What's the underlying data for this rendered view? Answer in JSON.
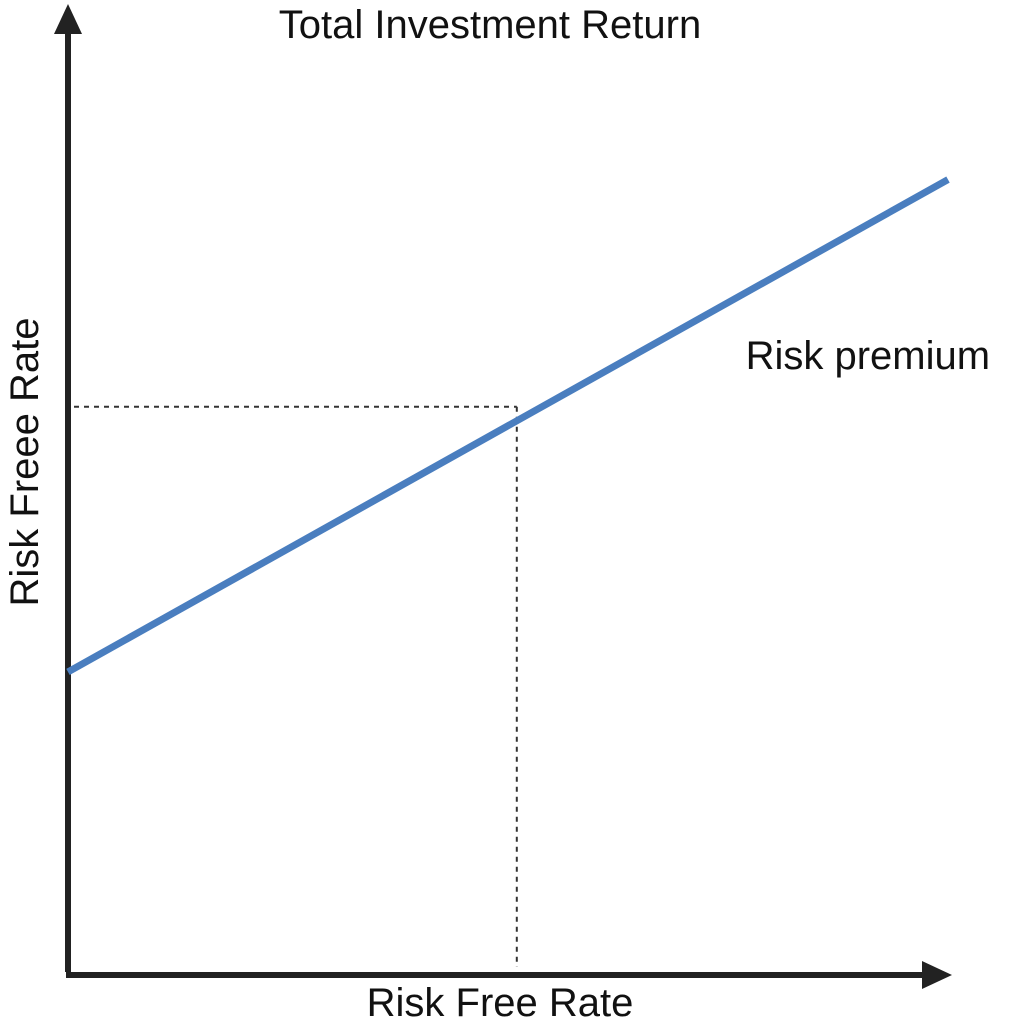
{
  "chart_data": {
    "type": "line",
    "title": "Total Investment Return",
    "xlabel": "Risk Free Rate",
    "ylabel": "Risk Freee Rate",
    "grid": false,
    "legend": "none",
    "xlim": [
      0,
      1
    ],
    "ylim": [
      0,
      1
    ],
    "series": [
      {
        "color": "#4a7ebf",
        "x": [
          0,
          1
        ],
        "y": [
          0.32,
          0.84
        ]
      }
    ],
    "reference_point": {
      "x": 0.51,
      "y": 0.6
    },
    "annotations": [
      {
        "text": "Risk premium",
        "x": 0.77,
        "y": 0.64
      }
    ]
  },
  "colors": {
    "axis": "#222222",
    "line": "#4a7ebf",
    "guide": "#333333",
    "text": "#111111"
  }
}
